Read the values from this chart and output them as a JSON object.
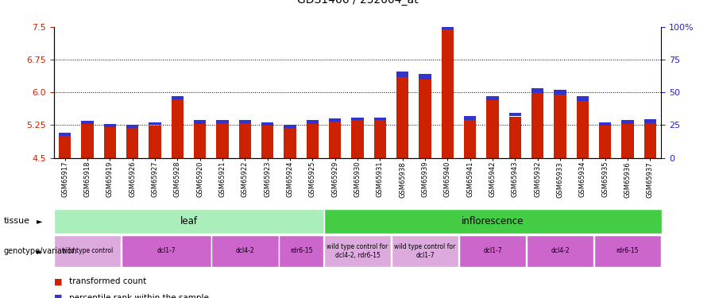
{
  "title": "GDS1466 / 252004_at",
  "samples": [
    "GSM65917",
    "GSM65918",
    "GSM65919",
    "GSM65926",
    "GSM65927",
    "GSM65928",
    "GSM65920",
    "GSM65921",
    "GSM65922",
    "GSM65923",
    "GSM65924",
    "GSM65925",
    "GSM65929",
    "GSM65930",
    "GSM65931",
    "GSM65938",
    "GSM65939",
    "GSM65940",
    "GSM65941",
    "GSM65942",
    "GSM65943",
    "GSM65932",
    "GSM65933",
    "GSM65934",
    "GSM65935",
    "GSM65936",
    "GSM65937"
  ],
  "red_values": [
    5.0,
    5.28,
    5.21,
    5.19,
    5.25,
    5.85,
    5.28,
    5.3,
    5.29,
    5.24,
    5.19,
    5.28,
    5.33,
    5.36,
    5.36,
    6.35,
    6.3,
    7.45,
    5.37,
    5.82,
    5.45,
    5.98,
    5.95,
    5.8,
    5.24,
    5.28,
    5.3
  ],
  "blue_values": [
    0.07,
    0.07,
    0.07,
    0.07,
    0.07,
    0.07,
    0.09,
    0.07,
    0.07,
    0.07,
    0.07,
    0.09,
    0.07,
    0.07,
    0.07,
    0.13,
    0.13,
    0.13,
    0.09,
    0.09,
    0.09,
    0.11,
    0.11,
    0.11,
    0.07,
    0.09,
    0.09
  ],
  "y_min": 4.5,
  "y_max": 7.5,
  "y_ticks_left": [
    4.5,
    5.25,
    6.0,
    6.75,
    7.5
  ],
  "y_ticks_right_vals": [
    4.5,
    5.25,
    6.0,
    6.75,
    7.5
  ],
  "y_ticks_right_labels": [
    "0",
    "25",
    "50",
    "75",
    "100%"
  ],
  "dotted_lines": [
    5.25,
    6.0,
    6.75
  ],
  "bar_color": "#cc2200",
  "blue_color": "#3333cc",
  "tissue_groups": [
    {
      "label": "leaf",
      "start": 0,
      "end": 11,
      "color": "#aaeebb"
    },
    {
      "label": "inflorescence",
      "start": 12,
      "end": 26,
      "color": "#44cc44"
    }
  ],
  "genotype_groups": [
    {
      "label": "wild type control",
      "start": 0,
      "end": 2,
      "color": "#ddaadd"
    },
    {
      "label": "dcl1-7",
      "start": 3,
      "end": 6,
      "color": "#cc66cc"
    },
    {
      "label": "dcl4-2",
      "start": 7,
      "end": 9,
      "color": "#cc66cc"
    },
    {
      "label": "rdr6-15",
      "start": 10,
      "end": 11,
      "color": "#cc66cc"
    },
    {
      "label": "wild type control for\ndcl4-2, rdr6-15",
      "start": 12,
      "end": 14,
      "color": "#ddaadd"
    },
    {
      "label": "wild type control for\ndcl1-7",
      "start": 15,
      "end": 17,
      "color": "#ddaadd"
    },
    {
      "label": "dcl1-7",
      "start": 18,
      "end": 20,
      "color": "#cc66cc"
    },
    {
      "label": "dcl4-2",
      "start": 21,
      "end": 23,
      "color": "#cc66cc"
    },
    {
      "label": "rdr6-15",
      "start": 24,
      "end": 26,
      "color": "#cc66cc"
    }
  ],
  "legend": [
    {
      "label": "transformed count",
      "color": "#cc2200"
    },
    {
      "label": "percentile rank within the sample",
      "color": "#3333cc"
    }
  ],
  "left_label_color": "#cc2200",
  "right_label_color": "#2222cc",
  "bg_color": "#ffffff"
}
